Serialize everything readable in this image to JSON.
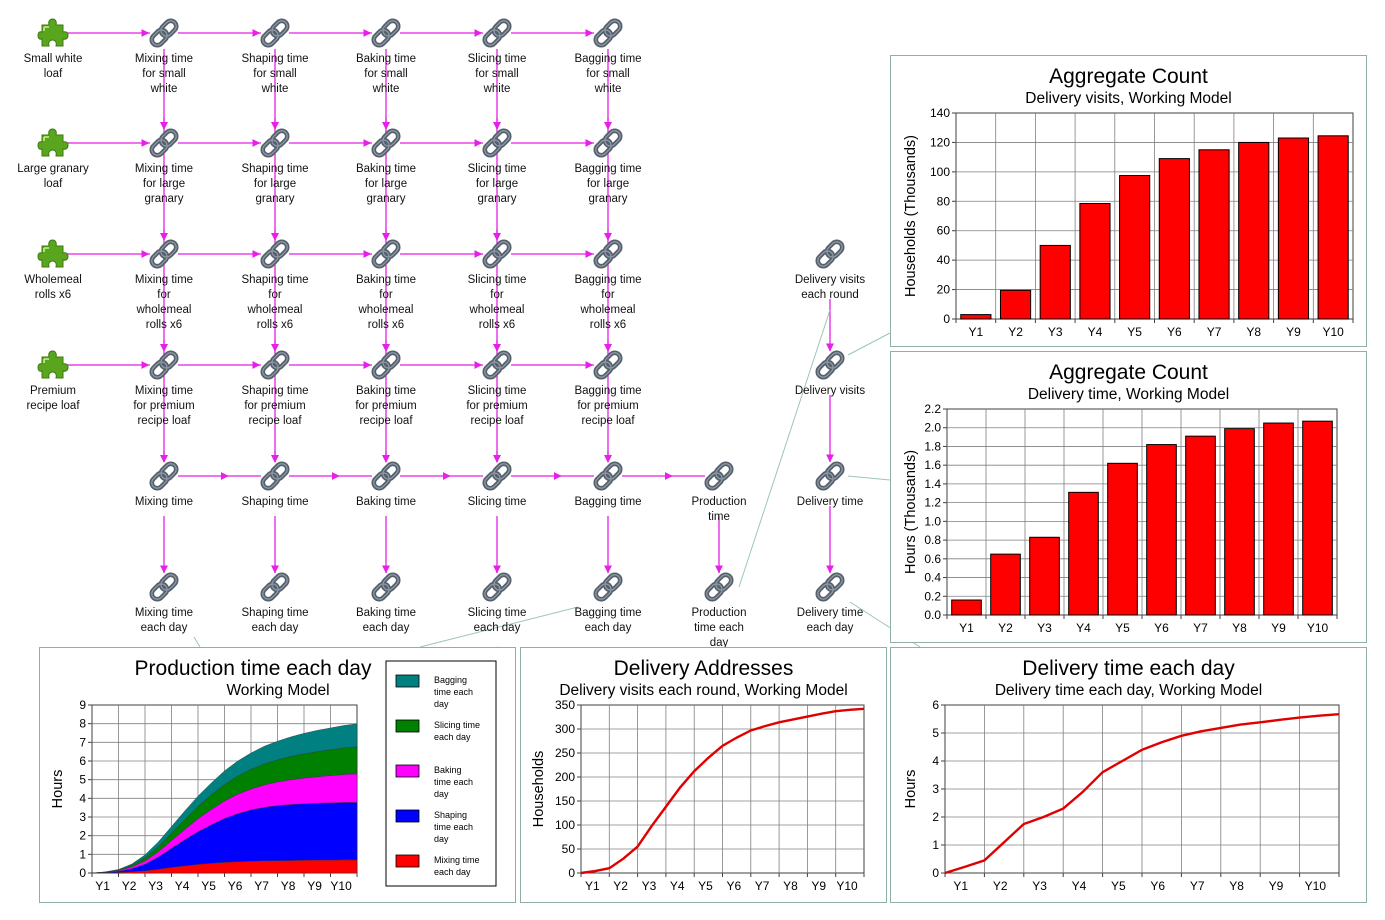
{
  "icons": {
    "piece": "puzzle-piece-icon",
    "link": "chain-link-icon"
  },
  "colors": {
    "flow": "#e81fe8",
    "connector": "#9bc6b6",
    "bar": "#ff0000",
    "line": "#e00000",
    "grid": "#808080"
  },
  "nodes": [
    {
      "id": "n_sw",
      "icon": "piece",
      "label": "Small white\nloaf"
    },
    {
      "id": "n_lg",
      "icon": "piece",
      "label": "Large granary\nloaf"
    },
    {
      "id": "n_wm",
      "icon": "piece",
      "label": "Wholemeal\nrolls x6"
    },
    {
      "id": "n_pr",
      "icon": "piece",
      "label": "Premium\nrecipe loaf"
    },
    {
      "id": "mix1",
      "icon": "link",
      "label": "Mixing time\nfor small\nwhite"
    },
    {
      "id": "sha1",
      "icon": "link",
      "label": "Shaping time\nfor small\nwhite"
    },
    {
      "id": "bak1",
      "icon": "link",
      "label": "Baking time\nfor small\nwhite"
    },
    {
      "id": "sli1",
      "icon": "link",
      "label": "Slicing time\nfor small\nwhite"
    },
    {
      "id": "bag1",
      "icon": "link",
      "label": "Bagging time\nfor small\nwhite"
    },
    {
      "id": "mix2",
      "icon": "link",
      "label": "Mixing time\nfor large\ngranary"
    },
    {
      "id": "sha2",
      "icon": "link",
      "label": "Shaping time\nfor large\ngranary"
    },
    {
      "id": "bak2",
      "icon": "link",
      "label": "Baking time\nfor large\ngranary"
    },
    {
      "id": "sli2",
      "icon": "link",
      "label": "Slicing time\nfor large\ngranary"
    },
    {
      "id": "bag2",
      "icon": "link",
      "label": "Bagging time\nfor large\ngranary"
    },
    {
      "id": "mix3",
      "icon": "link",
      "label": "Mixing time\nfor\nwholemeal\nrolls x6"
    },
    {
      "id": "sha3",
      "icon": "link",
      "label": "Shaping time\nfor\nwholemeal\nrolls x6"
    },
    {
      "id": "bak3",
      "icon": "link",
      "label": "Baking time\nfor\nwholemeal\nrolls x6"
    },
    {
      "id": "sli3",
      "icon": "link",
      "label": "Slicing time\nfor\nwholemeal\nrolls x6"
    },
    {
      "id": "bag3",
      "icon": "link",
      "label": "Bagging time\nfor\nwholemeal\nrolls x6"
    },
    {
      "id": "mix4",
      "icon": "link",
      "label": "Mixing time\nfor premium\nrecipe loaf"
    },
    {
      "id": "sha4",
      "icon": "link",
      "label": "Shaping time\nfor premium\nrecipe loaf"
    },
    {
      "id": "bak4",
      "icon": "link",
      "label": "Baking time\nfor premium\nrecipe loaf"
    },
    {
      "id": "sli4",
      "icon": "link",
      "label": "Slicing time\nfor premium\nrecipe loaf"
    },
    {
      "id": "bag4",
      "icon": "link",
      "label": "Bagging time\nfor premium\nrecipe loaf"
    },
    {
      "id": "mix5",
      "icon": "link",
      "label": "Mixing time"
    },
    {
      "id": "sha5",
      "icon": "link",
      "label": "Shaping time"
    },
    {
      "id": "bak5",
      "icon": "link",
      "label": "Baking time"
    },
    {
      "id": "sli5",
      "icon": "link",
      "label": "Slicing time"
    },
    {
      "id": "bag5",
      "icon": "link",
      "label": "Bagging time"
    },
    {
      "id": "prod5",
      "icon": "link",
      "label": "Production\ntime"
    },
    {
      "id": "mix6",
      "icon": "link",
      "label": "Mixing time\neach day"
    },
    {
      "id": "sha6",
      "icon": "link",
      "label": "Shaping time\neach day"
    },
    {
      "id": "bak6",
      "icon": "link",
      "label": "Baking time\neach day"
    },
    {
      "id": "sli6",
      "icon": "link",
      "label": "Slicing time\neach day"
    },
    {
      "id": "bag6",
      "icon": "link",
      "label": "Bagging time\neach day"
    },
    {
      "id": "prod6",
      "icon": "link",
      "label": "Production\ntime each\nday"
    },
    {
      "id": "dvr",
      "icon": "link",
      "label": "Delivery visits\neach round"
    },
    {
      "id": "dv",
      "icon": "link",
      "label": "Delivery visits"
    },
    {
      "id": "dt",
      "icon": "link",
      "label": "Delivery time"
    },
    {
      "id": "dtd",
      "icon": "link",
      "label": "Delivery time\neach day"
    }
  ],
  "chart_data": [
    {
      "id": "visits",
      "type": "bar",
      "title": "Aggregate Count",
      "subtitle": "Delivery visits, Working Model",
      "ylabel": "Households  (Thousands)",
      "xlabel": "",
      "categories": [
        "Y1",
        "Y2",
        "Y3",
        "Y4",
        "Y5",
        "Y6",
        "Y7",
        "Y8",
        "Y9",
        "Y10"
      ],
      "values": [
        3,
        19.5,
        50,
        78.5,
        97.5,
        109,
        115,
        120,
        123,
        124.5
      ],
      "ylim": [
        0,
        140
      ],
      "yticks": [
        0,
        20,
        40,
        60,
        80,
        100,
        120,
        140
      ],
      "ytick_labels": [
        "0",
        "20",
        "40",
        "60",
        "80",
        "100",
        "120",
        "140"
      ],
      "grid": true
    },
    {
      "id": "time",
      "type": "bar",
      "title": "Aggregate Count",
      "subtitle": "Delivery time, Working Model",
      "ylabel": "Hours  (Thousands)",
      "xlabel": "",
      "categories": [
        "Y1",
        "Y2",
        "Y3",
        "Y4",
        "Y5",
        "Y6",
        "Y7",
        "Y8",
        "Y9",
        "Y10"
      ],
      "values": [
        0.16,
        0.65,
        0.83,
        1.31,
        1.62,
        1.82,
        1.91,
        1.99,
        2.05,
        2.07
      ],
      "ylim": [
        0,
        2.2
      ],
      "yticks": [
        0,
        0.2,
        0.4,
        0.6,
        0.8,
        1,
        1.2,
        1.4,
        1.6,
        1.8,
        2,
        2.2
      ],
      "ytick_labels": [
        "0.0",
        "0.2",
        "0.4",
        "0.6",
        "0.8",
        "1.0",
        "1.2",
        "1.4",
        "1.6",
        "1.8",
        "2.0",
        "2.2"
      ],
      "grid": true
    },
    {
      "id": "prod",
      "type": "area",
      "title": "Production time each day",
      "subtitle": "Working Model",
      "ylabel": "Hours",
      "xlabel": "",
      "categories": [
        "Y1",
        "Y2",
        "Y3",
        "Y4",
        "Y5",
        "Y6",
        "Y7",
        "Y8",
        "Y9",
        "Y10"
      ],
      "x": [
        0,
        0.5,
        1,
        1.5,
        2,
        2.5,
        3,
        3.5,
        4,
        4.5,
        5,
        5.5,
        6,
        6.5,
        7,
        7.5,
        8,
        8.5,
        9,
        9.5,
        10
      ],
      "series": [
        {
          "name": "Mixing time each day",
          "color": "#ff0000",
          "values": [
            0,
            0.01,
            0.03,
            0.07,
            0.12,
            0.2,
            0.3,
            0.38,
            0.46,
            0.52,
            0.57,
            0.6,
            0.63,
            0.65,
            0.66,
            0.67,
            0.68,
            0.69,
            0.69,
            0.7,
            0.7
          ]
        },
        {
          "name": "Shaping time each day",
          "color": "#0000ff",
          "values": [
            0,
            0.02,
            0.06,
            0.16,
            0.35,
            0.65,
            1.02,
            1.4,
            1.75,
            2.06,
            2.35,
            2.58,
            2.75,
            2.87,
            2.95,
            3.0,
            3.03,
            3.05,
            3.07,
            3.08,
            3.08
          ]
        },
        {
          "name": "Baking time each day",
          "color": "#ff00ff",
          "values": [
            0,
            0.01,
            0.04,
            0.1,
            0.18,
            0.28,
            0.42,
            0.55,
            0.7,
            0.82,
            0.94,
            1.04,
            1.12,
            1.2,
            1.27,
            1.33,
            1.38,
            1.42,
            1.46,
            1.5,
            1.53
          ]
        },
        {
          "name": "Slicing time each day",
          "color": "#008000",
          "values": [
            0,
            0.01,
            0.03,
            0.08,
            0.17,
            0.28,
            0.4,
            0.54,
            0.66,
            0.78,
            0.88,
            0.97,
            1.05,
            1.12,
            1.18,
            1.24,
            1.29,
            1.34,
            1.38,
            1.42,
            1.45
          ]
        },
        {
          "name": "Bagging time each day",
          "color": "#008080",
          "values": [
            0,
            0.01,
            0.03,
            0.07,
            0.15,
            0.25,
            0.35,
            0.45,
            0.55,
            0.64,
            0.73,
            0.81,
            0.88,
            0.95,
            1.0,
            1.05,
            1.1,
            1.14,
            1.17,
            1.2,
            1.23
          ]
        }
      ],
      "legend_labels": [
        [
          "Bagging",
          "time each",
          "day"
        ],
        [
          "Slicing time",
          "each day"
        ],
        [
          "Baking",
          "time each",
          "day"
        ],
        [
          "Shaping",
          "time each",
          "day"
        ],
        [
          "Mixing time",
          "each day"
        ]
      ],
      "ylim": [
        0,
        9
      ],
      "yticks": [
        0,
        1,
        2,
        3,
        4,
        5,
        6,
        7,
        8,
        9
      ],
      "ytick_labels": [
        "0",
        "1",
        "2",
        "3",
        "4",
        "5",
        "6",
        "7",
        "8",
        "9"
      ],
      "grid": true,
      "legend": "right"
    },
    {
      "id": "addr",
      "type": "line",
      "title": "Delivery Addresses",
      "subtitle": "Delivery visits each round, Working Model",
      "ylabel": "Households",
      "xlabel": "",
      "categories": [
        "Y1",
        "Y2",
        "Y3",
        "Y4",
        "Y5",
        "Y6",
        "Y7",
        "Y8",
        "Y9",
        "Y10"
      ],
      "x": [
        0,
        0.5,
        1,
        1.5,
        2,
        2.5,
        3,
        3.5,
        4,
        4.5,
        5,
        5.5,
        6,
        6.5,
        7,
        7.5,
        8,
        8.5,
        9,
        9.5,
        10
      ],
      "series": [
        {
          "name": "",
          "values": [
            0,
            4,
            10,
            30,
            55,
            98,
            138,
            178,
            212,
            240,
            265,
            282,
            297,
            306,
            314,
            320,
            326,
            332,
            337,
            340,
            342
          ]
        }
      ],
      "ylim": [
        0,
        350
      ],
      "yticks": [
        0,
        50,
        100,
        150,
        200,
        250,
        300,
        350
      ],
      "ytick_labels": [
        "0",
        "50",
        "100",
        "150",
        "200",
        "250",
        "300",
        "350"
      ],
      "grid": true
    },
    {
      "id": "dtday",
      "type": "line",
      "title": "Delivery time each day",
      "subtitle": "Delivery time each day, Working Model",
      "ylabel": "Hours",
      "xlabel": "",
      "categories": [
        "Y1",
        "Y2",
        "Y3",
        "Y4",
        "Y5",
        "Y6",
        "Y7",
        "Y8",
        "Y9",
        "Y10"
      ],
      "x": [
        0,
        0.5,
        1,
        1.5,
        2,
        2.5,
        3,
        3.5,
        4,
        4.5,
        5,
        5.5,
        6,
        6.5,
        7,
        7.5,
        8,
        8.5,
        9,
        9.5,
        10
      ],
      "series": [
        {
          "name": "",
          "values": [
            0,
            0.22,
            0.45,
            1.1,
            1.75,
            2.0,
            2.3,
            2.9,
            3.6,
            4.0,
            4.4,
            4.67,
            4.9,
            5.06,
            5.18,
            5.3,
            5.38,
            5.47,
            5.55,
            5.62,
            5.67
          ]
        }
      ],
      "ylim": [
        0,
        6
      ],
      "yticks": [
        0,
        1,
        2,
        3,
        4,
        5,
        6
      ],
      "ytick_labels": [
        "0",
        "1",
        "2",
        "3",
        "4",
        "5",
        "6"
      ],
      "grid": true
    }
  ]
}
